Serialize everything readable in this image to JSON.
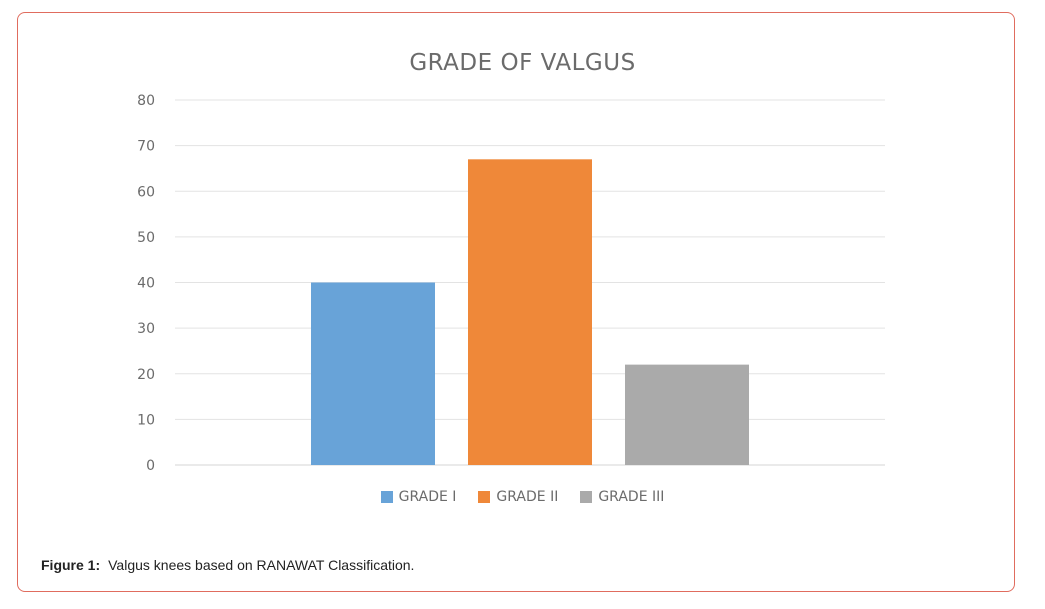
{
  "caption": {
    "label": "Figure 1:",
    "text": "Valgus knees based on RANAWAT Classification."
  },
  "chart_data": {
    "type": "bar",
    "title": "GRADE OF VALGUS",
    "categories": [
      "GRADE I",
      "GRADE II",
      "GRADE III"
    ],
    "values": [
      40,
      67,
      22
    ],
    "colors": [
      "#68a3d8",
      "#ef8839",
      "#aaaaaa"
    ],
    "ylim": [
      0,
      80
    ],
    "yticks": [
      0,
      10,
      20,
      30,
      40,
      50,
      60,
      70,
      80
    ],
    "grid": true,
    "legend": "bottom",
    "xlabel": "",
    "ylabel": ""
  }
}
